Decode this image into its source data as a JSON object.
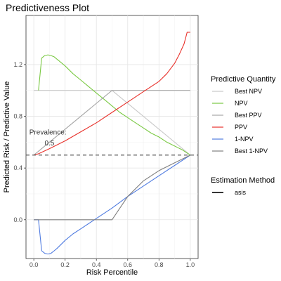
{
  "chart_data": {
    "type": "line",
    "title": "Predictiveness Plot",
    "xlabel": "Risk Percentile",
    "ylabel": "Predicted Risk / Predictive Value",
    "xlim": [
      -0.05,
      1.05
    ],
    "ylim": [
      -0.3,
      1.58
    ],
    "x_ticks": [
      0.0,
      0.2,
      0.4,
      0.6,
      0.8,
      1.0
    ],
    "x_tick_labels": [
      "0.0",
      "0.2",
      "0.4",
      "0.6",
      "0.8",
      "1.0"
    ],
    "y_ticks": [
      0.0,
      0.4,
      0.8,
      1.2
    ],
    "y_tick_labels": [
      "0.0",
      "0.4",
      "0.8",
      "1.2"
    ],
    "grid": true,
    "prevalence": {
      "value": 0.5,
      "label": "Prevalence:",
      "value_label": "0.5",
      "line_style": "dashed"
    },
    "legend": {
      "placement": "right",
      "groups": [
        {
          "title": "Predictive Quantity",
          "entries": [
            "Best NPV",
            "NPV",
            "Best PPV",
            "PPV",
            "1-NPV",
            "Best 1-NPV"
          ]
        },
        {
          "title": "Estimation Method",
          "entries": [
            "asis"
          ]
        }
      ]
    },
    "series": [
      {
        "name": "Best NPV",
        "color": "#c8c8c8",
        "x": [
          0.0,
          0.5,
          1.0
        ],
        "y": [
          1.0,
          1.0,
          0.5
        ]
      },
      {
        "name": "NPV",
        "color": "#7ac943",
        "x": [
          0.03,
          0.05,
          0.07,
          0.09,
          0.11,
          0.13,
          0.15,
          0.2,
          0.25,
          0.3,
          0.35,
          0.4,
          0.45,
          0.5,
          0.55,
          0.6,
          0.65,
          0.7,
          0.75,
          0.8,
          0.85,
          0.9,
          0.95,
          1.0
        ],
        "y": [
          1.0,
          1.25,
          1.27,
          1.275,
          1.27,
          1.26,
          1.24,
          1.19,
          1.13,
          1.08,
          1.03,
          0.98,
          0.93,
          0.88,
          0.83,
          0.79,
          0.75,
          0.71,
          0.67,
          0.64,
          0.6,
          0.57,
          0.54,
          0.5
        ]
      },
      {
        "name": "Best PPV",
        "color": "#a6a6a6",
        "x": [
          0.0,
          0.5,
          1.0
        ],
        "y": [
          0.5,
          1.0,
          1.0
        ]
      },
      {
        "name": "PPV",
        "color": "#e8302a",
        "x": [
          0.0,
          0.03,
          0.1,
          0.2,
          0.3,
          0.4,
          0.5,
          0.6,
          0.7,
          0.8,
          0.85,
          0.9,
          0.93,
          0.96,
          0.98,
          1.0
        ],
        "y": [
          0.5,
          0.51,
          0.55,
          0.61,
          0.68,
          0.75,
          0.83,
          0.91,
          0.99,
          1.07,
          1.13,
          1.21,
          1.28,
          1.36,
          1.45,
          1.45
        ]
      },
      {
        "name": "1-NPV",
        "color": "#4f7be0",
        "x": [
          0.0,
          0.03,
          0.05,
          0.07,
          0.09,
          0.11,
          0.13,
          0.15,
          0.2,
          0.25,
          0.3,
          0.4,
          0.5,
          0.6,
          0.7,
          0.8,
          0.9,
          1.0
        ],
        "y": [
          0.0,
          0.0,
          -0.24,
          -0.26,
          -0.265,
          -0.26,
          -0.24,
          -0.22,
          -0.16,
          -0.11,
          -0.07,
          0.01,
          0.09,
          0.18,
          0.26,
          0.34,
          0.42,
          0.5
        ]
      },
      {
        "name": "Best 1-NPV",
        "color": "#7f7f7f",
        "x": [
          0.0,
          0.5,
          0.6,
          0.7,
          0.8,
          0.9,
          1.0
        ],
        "y": [
          0.0,
          0.0,
          0.18,
          0.3,
          0.38,
          0.44,
          0.5
        ]
      }
    ]
  }
}
